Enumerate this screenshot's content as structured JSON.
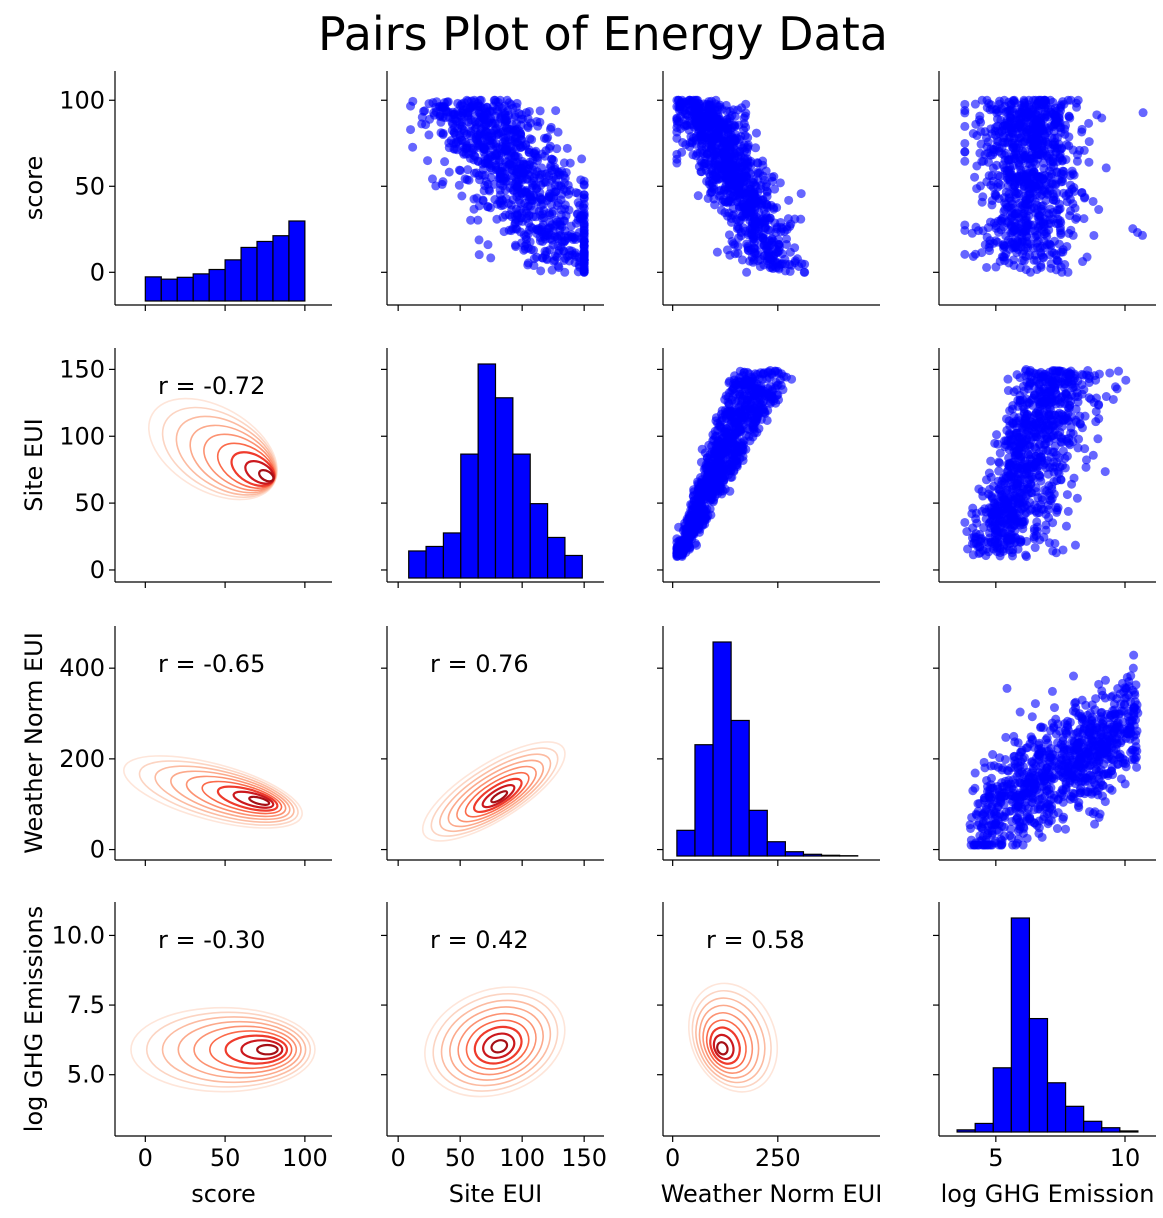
{
  "title": "Pairs Plot of Energy Data",
  "chart_data": {
    "type": "pairs",
    "variables": [
      "score",
      "Site EUI",
      "Weather Norm EUI",
      "log GHG Emissions"
    ],
    "x_axis_labels": [
      "score",
      "Site EUI",
      "Weather Norm EUI",
      "log GHG Emission"
    ],
    "y_axis_labels": [
      "score",
      "Site EUI",
      "Weather Norm EUI",
      "log GHG Emissions"
    ],
    "colors": {
      "hist": "#0000ff",
      "scatter": "#0000ff",
      "kde_light": "#fee0d2",
      "kde_dark": "#a50f15"
    },
    "ticks": {
      "score": {
        "values": [
          0,
          50,
          100
        ],
        "labels": [
          "0",
          "50",
          "100"
        ]
      },
      "Site EUI": {
        "values": [
          0,
          50,
          100,
          150
        ],
        "labels": [
          "0",
          "50",
          "100",
          "150"
        ]
      },
      "Weather Norm EUI": {
        "values": [
          0,
          200,
          400
        ],
        "labels": [
          "0",
          "200",
          "400"
        ]
      },
      "Weather Norm EUI_x": {
        "values": [
          0,
          250
        ],
        "labels": [
          "0",
          "250"
        ]
      },
      "log GHG Emissions": {
        "values": [
          5.0,
          7.5,
          10.0
        ],
        "labels": [
          "5.0",
          "7.5",
          "10.0"
        ]
      },
      "log GHG Emissions_x": {
        "values": [
          5,
          10
        ],
        "labels": [
          "5",
          "10"
        ]
      }
    },
    "ranges": {
      "score": [
        -19,
        117
      ],
      "Site EUI": [
        -9,
        166
      ],
      "Weather Norm EUI": [
        -23,
        493
      ],
      "log GHG Emissions": [
        2.8,
        11.2
      ]
    },
    "histograms": [
      {
        "variable": "score",
        "bin_edges": [
          0,
          10,
          20,
          30,
          40,
          50,
          60,
          70,
          80,
          90,
          100
        ],
        "counts": [
          10.5,
          9.5,
          10.3,
          11.8,
          13.7,
          17.9,
          23.3,
          25.9,
          28.4,
          34.8
        ]
      },
      {
        "variable": "Site EUI",
        "bin_edges": [
          8.5,
          22.5,
          36.5,
          50.5,
          64.5,
          78.5,
          92.5,
          106.5,
          120.5,
          134.5,
          148.5
        ],
        "counts": [
          12,
          14,
          20,
          55,
          95,
          80,
          55,
          33,
          18,
          10
        ]
      },
      {
        "variable": "Weather Norm EUI",
        "bin_edges": [
          10,
          53,
          96,
          139,
          182,
          225,
          268,
          311,
          354,
          397,
          440
        ],
        "counts": [
          18,
          78,
          150,
          95,
          32,
          10,
          3,
          1.2,
          0.5,
          0.2
        ]
      },
      {
        "variable": "log GHG Emissions",
        "bin_edges": [
          3.5,
          4.2,
          4.9,
          5.6,
          6.3,
          7.0,
          7.7,
          8.4,
          9.1,
          9.8,
          10.5
        ],
        "counts": [
          1,
          4,
          30,
          100,
          53,
          23,
          12,
          5,
          2,
          0.5
        ]
      }
    ],
    "correlations": [
      {
        "pair": [
          "score",
          "Site EUI"
        ],
        "r": -0.72,
        "text": "r = -0.72"
      },
      {
        "pair": [
          "score",
          "Weather Norm EUI"
        ],
        "r": -0.65,
        "text": "r = -0.65"
      },
      {
        "pair": [
          "Site EUI",
          "Weather Norm EUI"
        ],
        "r": 0.76,
        "text": "r = 0.76"
      },
      {
        "pair": [
          "score",
          "log GHG Emissions"
        ],
        "r": -0.3,
        "text": "r = -0.30"
      },
      {
        "pair": [
          "Site EUI",
          "log GHG Emissions"
        ],
        "r": 0.42,
        "text": "r = 0.42"
      },
      {
        "pair": [
          "Weather Norm EUI",
          "log GHG Emissions"
        ],
        "r": 0.58,
        "text": "r = 0.58"
      }
    ],
    "kde_centers": [
      {
        "pair": [
          "score",
          "Site EUI"
        ],
        "center": [
          80,
          68
        ]
      },
      {
        "pair": [
          "score",
          "Weather Norm EUI"
        ],
        "center": [
          75,
          105
        ]
      },
      {
        "pair": [
          "Site EUI",
          "Weather Norm EUI"
        ],
        "center": [
          82,
          115
        ]
      },
      {
        "pair": [
          "score",
          "log GHG Emissions"
        ],
        "center": [
          80,
          5.9
        ]
      },
      {
        "pair": [
          "Site EUI",
          "log GHG Emissions"
        ],
        "center": [
          82,
          6.0
        ]
      },
      {
        "pair": [
          "Weather Norm EUI",
          "log GHG Emissions"
        ],
        "center": [
          115,
          5.9
        ]
      }
    ],
    "scatter": {
      "marker": "circle",
      "alpha": 0.6,
      "point_count_per_panel": "dense"
    }
  }
}
